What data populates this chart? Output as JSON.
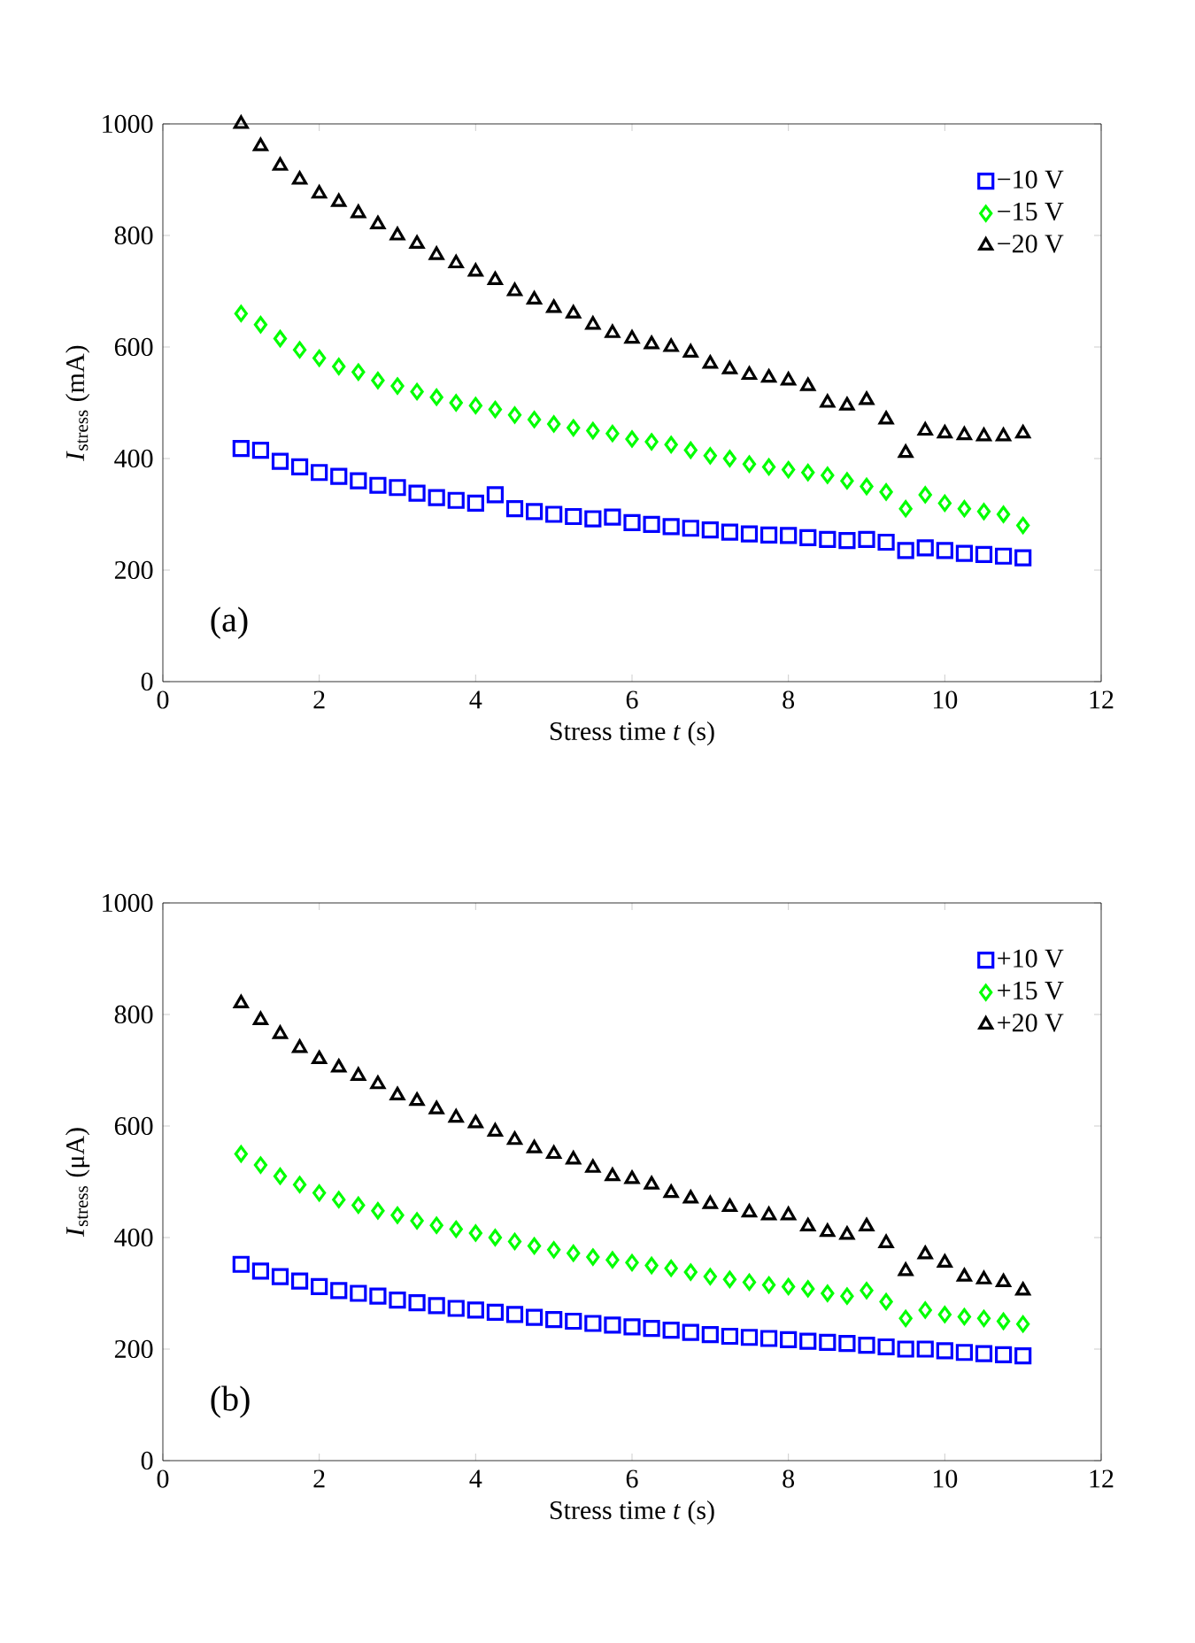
{
  "chart_data": [
    {
      "type": "scatter",
      "xlabel": "Stress time *t* (s)",
      "ylabel": "*I*$_{stress}$ (mA)",
      "annotations": [
        "(a)"
      ],
      "legend": "top right",
      "grid": false,
      "xlim": [
        0,
        12
      ],
      "ylim": [
        0,
        1000
      ],
      "xticks": [
        0,
        2,
        4,
        6,
        8,
        10,
        12
      ],
      "yticks": [
        0,
        200,
        400,
        600,
        800,
        1000
      ],
      "x": [
        1,
        1.25,
        1.5,
        1.75,
        2,
        2.25,
        2.5,
        2.75,
        3,
        3.25,
        3.5,
        3.75,
        4,
        4.25,
        4.5,
        4.75,
        5,
        5.25,
        5.5,
        5.75,
        6,
        6.25,
        6.5,
        6.75,
        7,
        7.25,
        7.5,
        7.75,
        8,
        8.25,
        8.5,
        8.75,
        9,
        9.25,
        9.5,
        9.75,
        10,
        10.25,
        10.5,
        10.75,
        11
      ],
      "series": [
        {
          "name": "−10 V",
          "color": "#0000ff",
          "marker": "square",
          "values": [
            418,
            415,
            395,
            385,
            375,
            368,
            360,
            352,
            348,
            338,
            330,
            325,
            320,
            335,
            310,
            305,
            300,
            296,
            292,
            295,
            285,
            282,
            278,
            275,
            272,
            268,
            265,
            263,
            262,
            258,
            255,
            253,
            255,
            250,
            235,
            240,
            235,
            230,
            228,
            225,
            222
          ]
        },
        {
          "name": "−15 V",
          "color": "#00ff00",
          "marker": "diamond",
          "values": [
            660,
            640,
            615,
            595,
            580,
            565,
            555,
            540,
            530,
            520,
            510,
            500,
            495,
            488,
            478,
            470,
            462,
            455,
            450,
            445,
            435,
            430,
            425,
            415,
            405,
            400,
            390,
            385,
            380,
            375,
            370,
            360,
            350,
            340,
            310,
            335,
            320,
            310,
            305,
            300,
            280
          ]
        },
        {
          "name": "−20 V",
          "color": "#000000",
          "marker": "triangle",
          "values": [
            1000,
            960,
            925,
            900,
            875,
            860,
            840,
            820,
            800,
            785,
            765,
            750,
            735,
            720,
            700,
            685,
            670,
            660,
            640,
            625,
            615,
            605,
            600,
            590,
            570,
            560,
            550,
            545,
            540,
            530,
            500,
            495,
            505,
            470,
            410,
            450,
            445,
            442,
            440,
            440,
            445
          ]
        }
      ]
    },
    {
      "type": "scatter",
      "xlabel": "Stress time *t* (s)",
      "ylabel": "*I*$_{stress}$ (μA)",
      "annotations": [
        "(b)"
      ],
      "legend": "top right",
      "grid": false,
      "xlim": [
        0,
        12
      ],
      "ylim": [
        0,
        1000
      ],
      "xticks": [
        0,
        2,
        4,
        6,
        8,
        10,
        12
      ],
      "yticks": [
        0,
        200,
        400,
        600,
        800,
        1000
      ],
      "x": [
        1,
        1.25,
        1.5,
        1.75,
        2,
        2.25,
        2.5,
        2.75,
        3,
        3.25,
        3.5,
        3.75,
        4,
        4.25,
        4.5,
        4.75,
        5,
        5.25,
        5.5,
        5.75,
        6,
        6.25,
        6.5,
        6.75,
        7,
        7.25,
        7.5,
        7.75,
        8,
        8.25,
        8.5,
        8.75,
        9,
        9.25,
        9.5,
        9.75,
        10,
        10.25,
        10.5,
        10.75,
        11
      ],
      "series": [
        {
          "name": "+10 V",
          "color": "#0000ff",
          "marker": "square",
          "values": [
            352,
            340,
            330,
            322,
            312,
            305,
            300,
            295,
            288,
            283,
            278,
            273,
            270,
            266,
            262,
            257,
            253,
            250,
            246,
            243,
            240,
            237,
            234,
            230,
            226,
            223,
            221,
            219,
            217,
            214,
            212,
            210,
            207,
            204,
            200,
            200,
            197,
            194,
            192,
            190,
            188
          ]
        },
        {
          "name": "+15 V",
          "color": "#00ff00",
          "marker": "diamond",
          "values": [
            550,
            530,
            510,
            495,
            480,
            468,
            458,
            448,
            440,
            430,
            422,
            415,
            408,
            400,
            393,
            385,
            378,
            372,
            365,
            360,
            355,
            350,
            345,
            338,
            330,
            325,
            320,
            315,
            312,
            308,
            300,
            295,
            305,
            285,
            255,
            270,
            262,
            258,
            255,
            250,
            245
          ]
        },
        {
          "name": "+20 V",
          "color": "#000000",
          "marker": "triangle",
          "values": [
            820,
            790,
            765,
            740,
            720,
            705,
            690,
            675,
            655,
            645,
            630,
            615,
            605,
            590,
            575,
            560,
            550,
            540,
            525,
            510,
            505,
            495,
            480,
            470,
            460,
            455,
            445,
            440,
            440,
            420,
            410,
            405,
            420,
            390,
            340,
            370,
            355,
            330,
            325,
            320,
            305
          ]
        }
      ]
    }
  ]
}
